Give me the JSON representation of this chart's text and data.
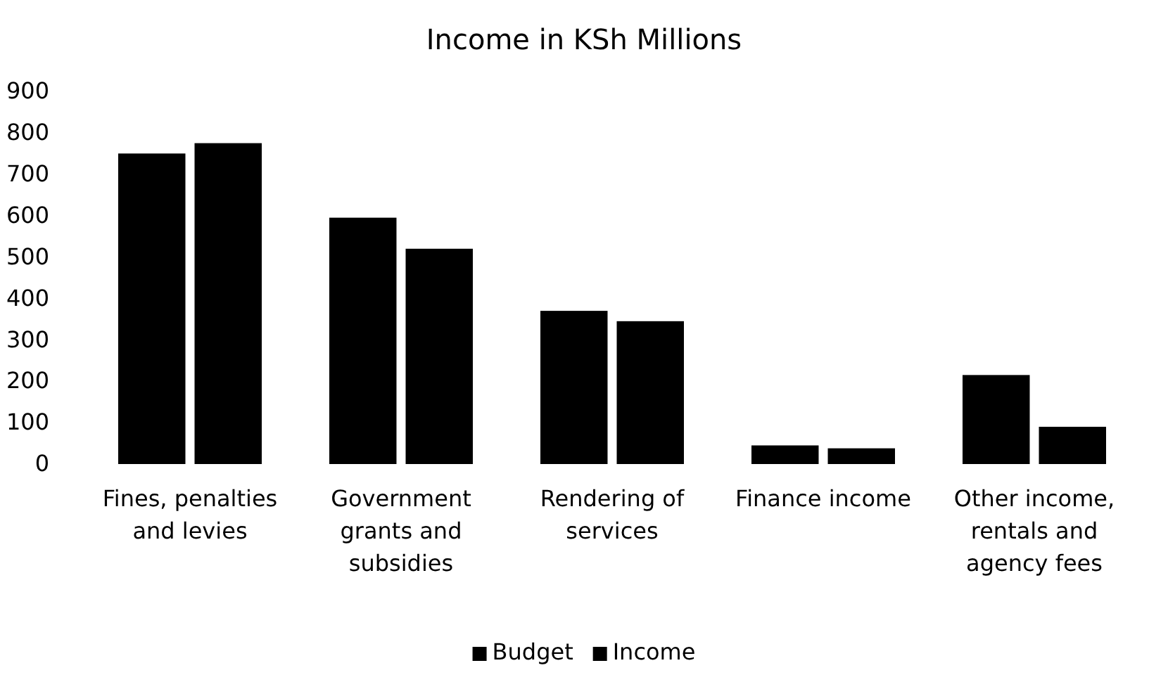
{
  "chart_data": {
    "type": "bar",
    "title": "Income in KSh Millions",
    "categories": [
      "Fines, penalties and levies",
      "Government grants and subsidies",
      "Rendering of services",
      "Finance income",
      "Other income, rentals and agency fees"
    ],
    "series": [
      {
        "name": "Budget",
        "color": "#000000",
        "values": [
          750,
          595,
          370,
          45,
          215
        ]
      },
      {
        "name": "Income",
        "color": "#000000",
        "values": [
          775,
          520,
          345,
          38,
          90
        ]
      }
    ],
    "ylim": [
      0,
      900
    ],
    "yticks": [
      0,
      100,
      200,
      300,
      400,
      500,
      600,
      700,
      800,
      900
    ],
    "legend": "bottom"
  }
}
